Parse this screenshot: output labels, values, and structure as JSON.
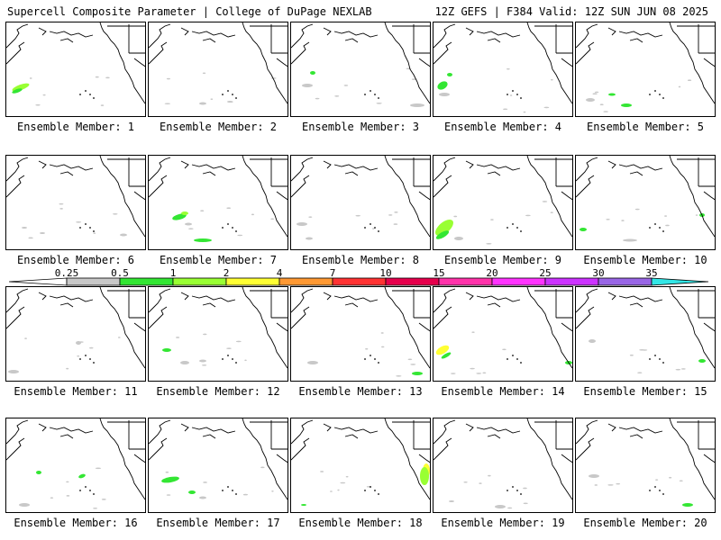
{
  "header": {
    "left": "Supercell Composite Parameter | College of DuPage NEXLAB",
    "right": "12Z GEFS | F384 Valid: 12Z SUN JUN 08 2025"
  },
  "members": [
    {
      "label": "Ensemble Member: 1"
    },
    {
      "label": "Ensemble Member: 2"
    },
    {
      "label": "Ensemble Member: 3"
    },
    {
      "label": "Ensemble Member: 4"
    },
    {
      "label": "Ensemble Member: 5"
    },
    {
      "label": "Ensemble Member: 6"
    },
    {
      "label": "Ensemble Member: 7"
    },
    {
      "label": "Ensemble Member: 8"
    },
    {
      "label": "Ensemble Member: 9"
    },
    {
      "label": "Ensemble Member: 10"
    },
    {
      "label": "Ensemble Member: 11"
    },
    {
      "label": "Ensemble Member: 12"
    },
    {
      "label": "Ensemble Member: 13"
    },
    {
      "label": "Ensemble Member: 14"
    },
    {
      "label": "Ensemble Member: 15"
    },
    {
      "label": "Ensemble Member: 16"
    },
    {
      "label": "Ensemble Member: 17"
    },
    {
      "label": "Ensemble Member: 18"
    },
    {
      "label": "Ensemble Member: 19"
    },
    {
      "label": "Ensemble Member: 20"
    }
  ],
  "legend": {
    "levels": [
      {
        "label": "0.25",
        "color": "#c8c8c8"
      },
      {
        "label": "0.5",
        "color": "#33e633"
      },
      {
        "label": "1",
        "color": "#99ff33"
      },
      {
        "label": "2",
        "color": "#ffff33"
      },
      {
        "label": "4",
        "color": "#ff9933"
      },
      {
        "label": "7",
        "color": "#ff3333"
      },
      {
        "label": "10",
        "color": "#e6004c"
      },
      {
        "label": "15",
        "color": "#ff33aa"
      },
      {
        "label": "20",
        "color": "#ff33ff"
      },
      {
        "label": "25",
        "color": "#cc33ff"
      },
      {
        "label": "30",
        "color": "#9966e6"
      },
      {
        "label": "35",
        "color": "#33e6e6"
      }
    ],
    "low_color": "#ffffff"
  }
}
